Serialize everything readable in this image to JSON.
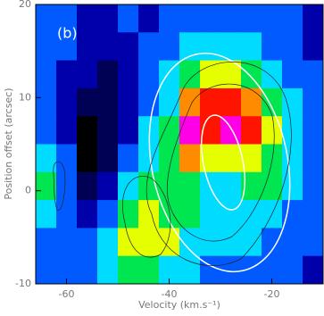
{
  "chart_data": {
    "type": "heatmap",
    "panel_label": "(b)",
    "x_label": "Velocity (km.s⁻¹)",
    "y_label": "Position offset (arcsec)",
    "xlim": [
      -66,
      -10
    ],
    "ylim": [
      -10,
      20
    ],
    "xticks": [
      -60,
      -40,
      -20
    ],
    "yticks": [
      -10,
      0,
      10,
      20
    ],
    "x": [
      -64,
      -60,
      -56,
      -52,
      -48,
      -44,
      -40,
      -36,
      -32,
      -28,
      -24,
      -20,
      -16,
      -12
    ],
    "y": [
      18.5,
      15.5,
      12.5,
      9.5,
      6.5,
      3.5,
      0.5,
      -2.5,
      -5.5,
      -8.5
    ],
    "values": [
      [
        3,
        3,
        2,
        2,
        3,
        2,
        3,
        3,
        3,
        3,
        3,
        3,
        3,
        2
      ],
      [
        3,
        3,
        2,
        2,
        2,
        3,
        3,
        4,
        4,
        4,
        4,
        3,
        3,
        2
      ],
      [
        3,
        2,
        2,
        1,
        2,
        3,
        4,
        5,
        6,
        6,
        5,
        4,
        3,
        3
      ],
      [
        3,
        2,
        1,
        1,
        2,
        3,
        4,
        7,
        8,
        8,
        7,
        5,
        4,
        3
      ],
      [
        3,
        2,
        0,
        1,
        2,
        4,
        5,
        9,
        8,
        9,
        8,
        6,
        4,
        3
      ],
      [
        4,
        3,
        0,
        1,
        3,
        4,
        5,
        7,
        6,
        6,
        6,
        5,
        4,
        3
      ],
      [
        5,
        3,
        1,
        2,
        4,
        5,
        5,
        5,
        4,
        4,
        5,
        5,
        4,
        3
      ],
      [
        4,
        3,
        2,
        3,
        5,
        6,
        5,
        5,
        4,
        4,
        4,
        4,
        3,
        3
      ],
      [
        3,
        3,
        3,
        4,
        6,
        6,
        6,
        4,
        4,
        4,
        4,
        3,
        3,
        3
      ],
      [
        3,
        3,
        3,
        4,
        5,
        5,
        4,
        4,
        3,
        3,
        3,
        3,
        3,
        2
      ]
    ]
  }
}
